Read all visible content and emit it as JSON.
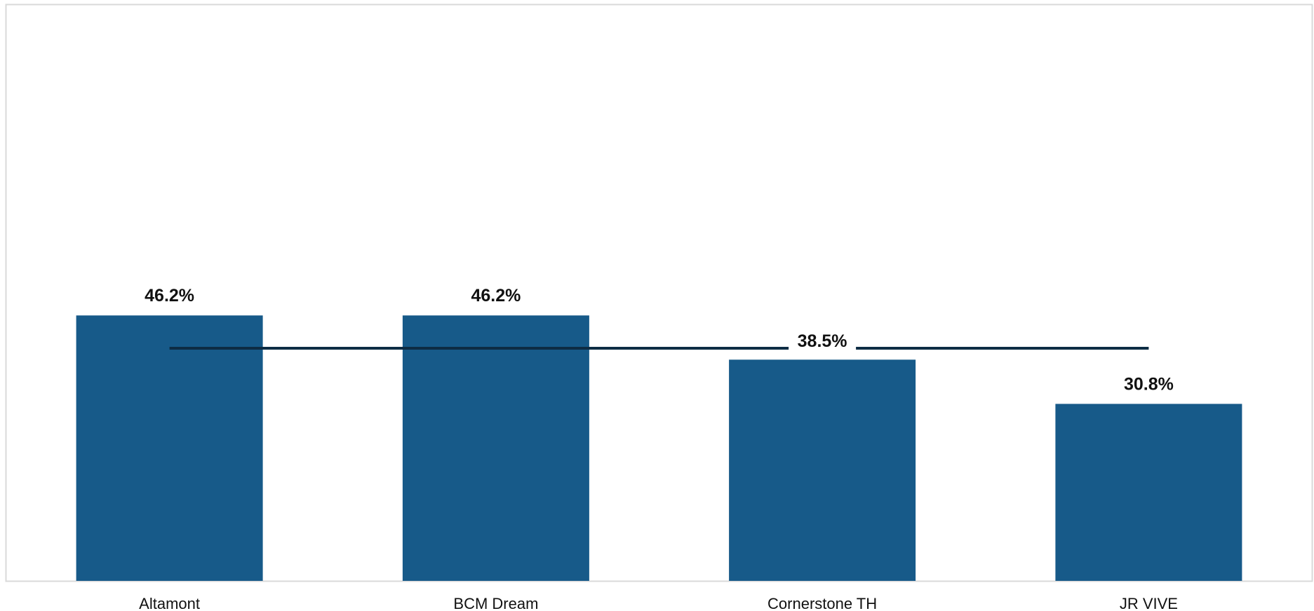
{
  "chart_data": {
    "type": "bar",
    "categories": [
      "Altamont",
      "BCM Dream",
      "Cornerstone TH",
      "JR VIVE"
    ],
    "values": [
      46.2,
      46.2,
      38.5,
      30.8
    ],
    "value_labels": [
      "46.2%",
      "46.2%",
      "38.5%",
      "30.8%"
    ],
    "average": {
      "value": 38.5,
      "label": "38.5%",
      "color": "#0d2c44"
    },
    "ylim": [
      0,
      100
    ],
    "grid": false,
    "legend": "none",
    "bar_color": "#175a89",
    "frame_color": "#d9d9d9"
  }
}
